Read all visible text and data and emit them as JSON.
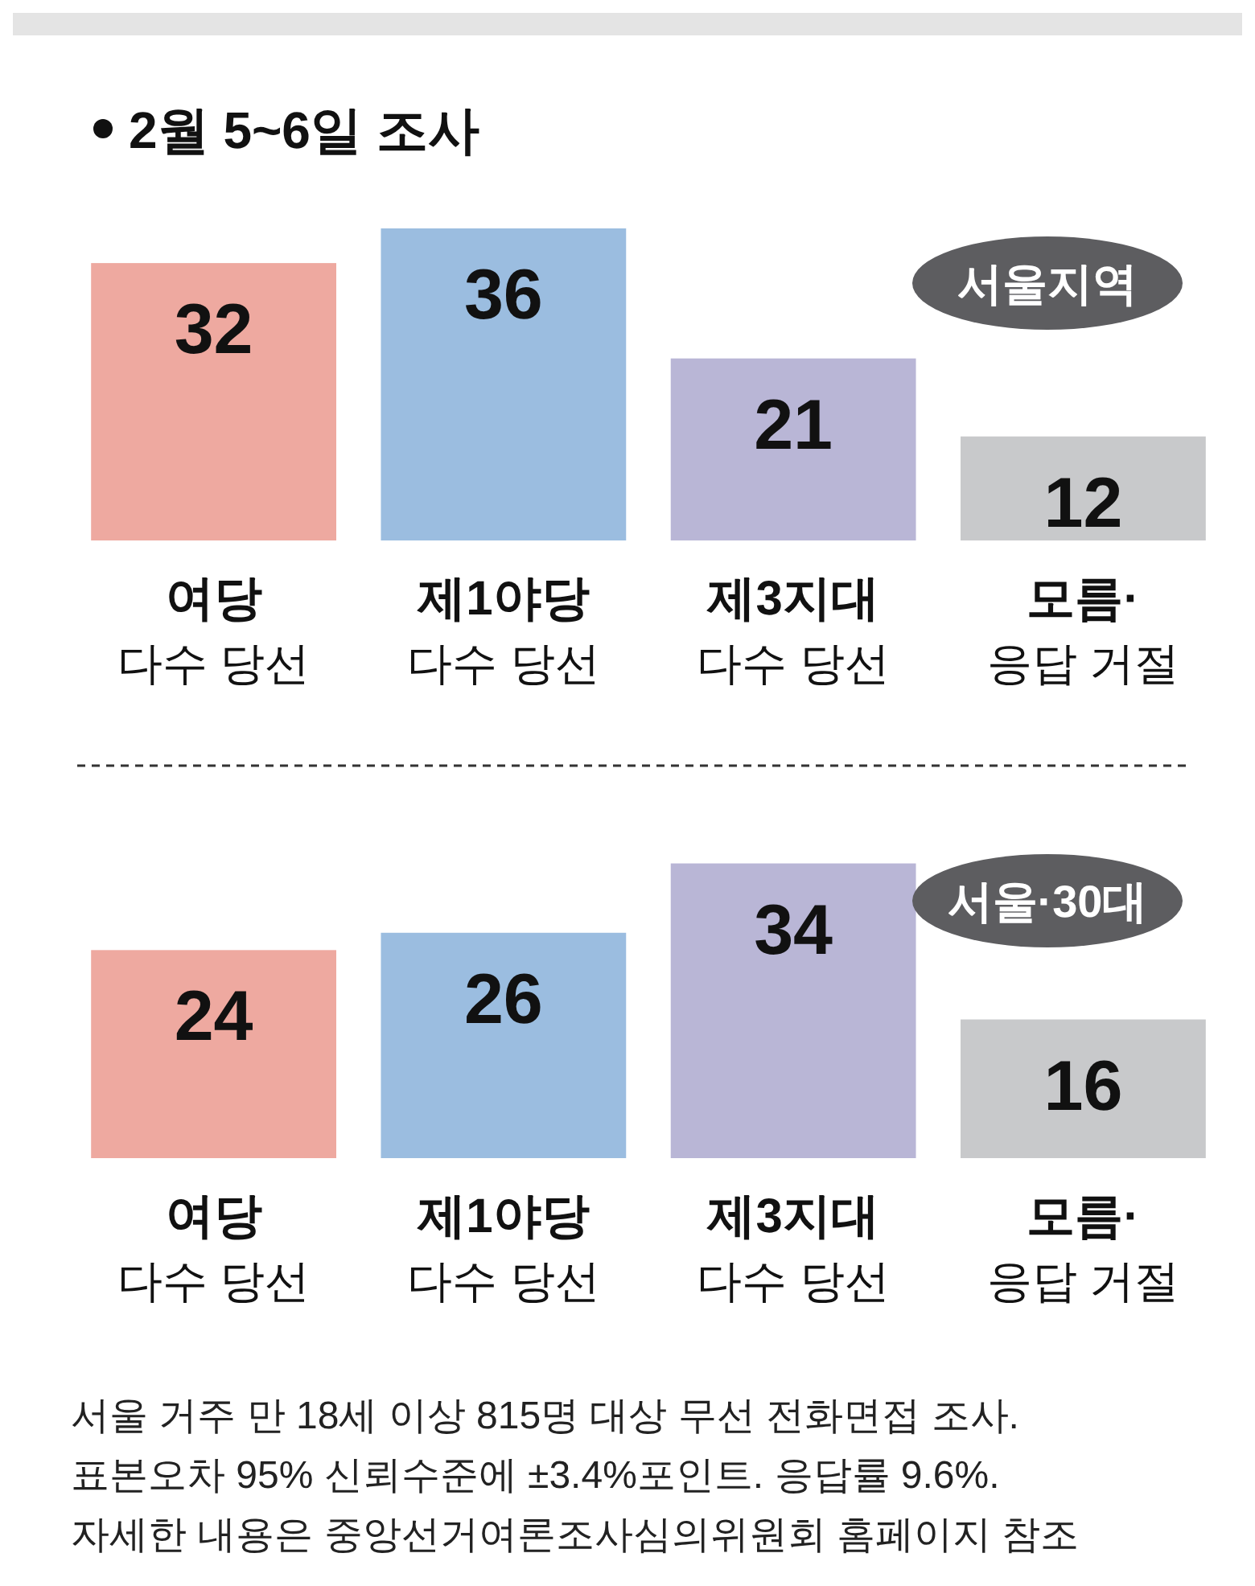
{
  "chart_data": [
    {
      "type": "bar",
      "title": "2월 5~6일 조사",
      "subtitle": "서울지역",
      "categories": [
        "여당\n다수 당선",
        "제1야당\n다수 당선",
        "제3지대\n다수 당선",
        "모름·\n응답 거절"
      ],
      "values": [
        32,
        36,
        21,
        12
      ],
      "colors": [
        "#eea9a0",
        "#9bbde0",
        "#b9b6d6",
        "#c8c9cb"
      ],
      "data_labels": true
    },
    {
      "type": "bar",
      "subtitle": "서울·30대",
      "categories": [
        "여당\n다수 당선",
        "제1야당\n다수 당선",
        "제3지대\n다수 당선",
        "모름·\n응답 거절"
      ],
      "values": [
        24,
        26,
        34,
        16
      ],
      "colors": [
        "#eea9a0",
        "#9bbde0",
        "#b9b6d6",
        "#c8c9cb"
      ],
      "data_labels": true,
      "annotations": [
        "서울 거주 만 18세 이상 815명 대상 무선 전화면접 조사.",
        "표본오차 95% 신뢰수준에 ±3.4%포인트. 응답률 9.6%.",
        "자세한 내용은 중앙선거여론조사심의위원회 홈페이지 참조"
      ]
    }
  ]
}
